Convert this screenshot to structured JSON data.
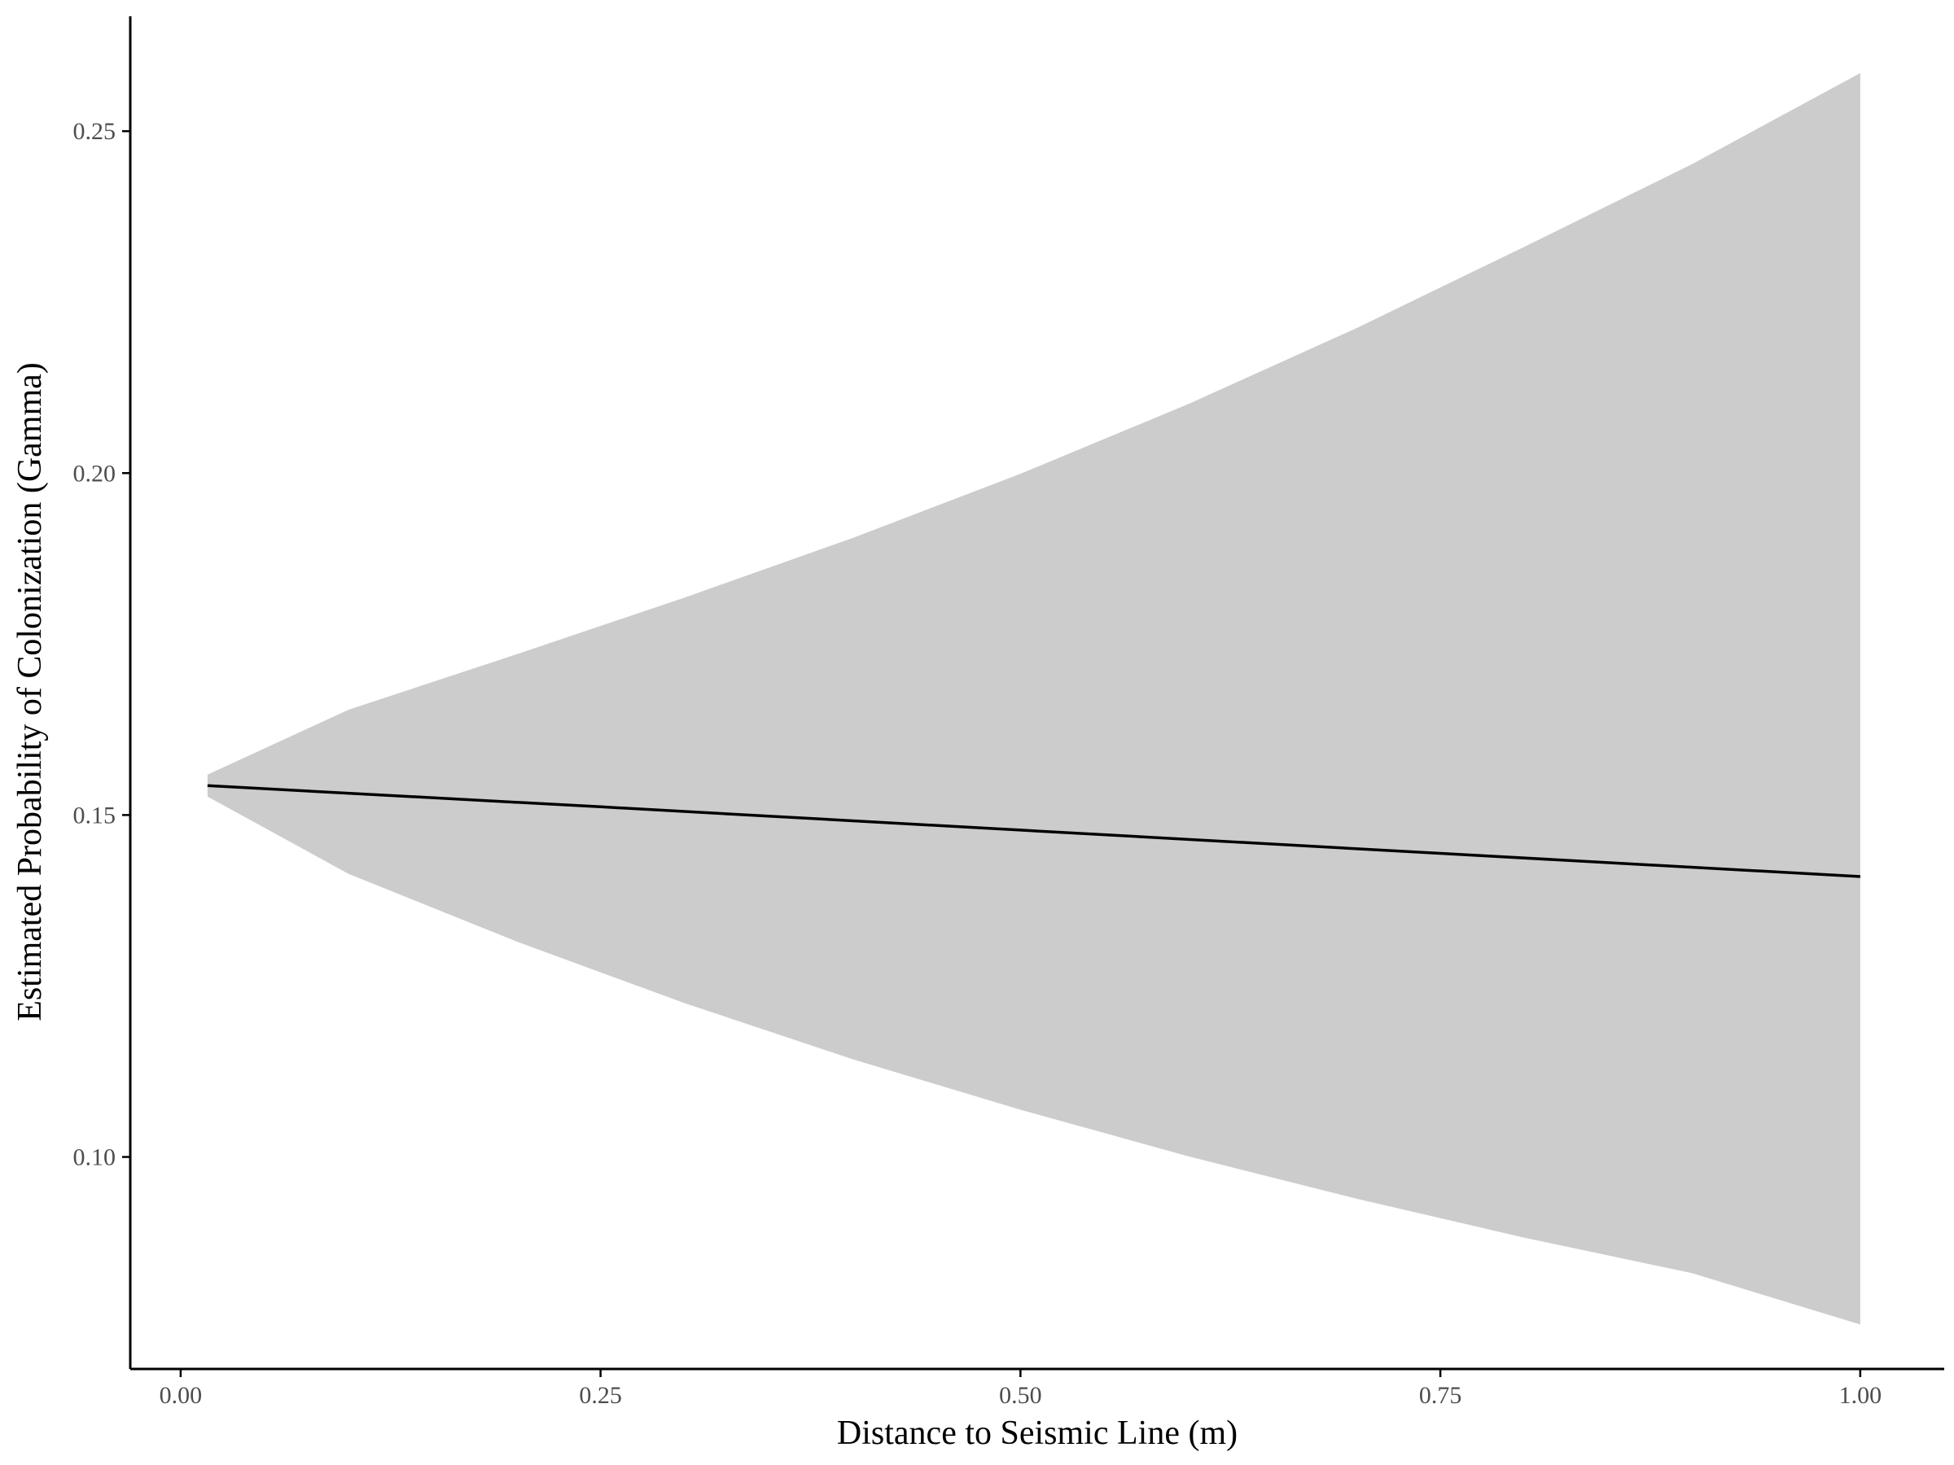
{
  "chart_data": {
    "type": "area",
    "title": "",
    "xlabel": "Distance to Seismic Line (m)",
    "ylabel": "Estimated Probability of Colonization (Gamma)",
    "xlim": [
      -0.03,
      1.05
    ],
    "ylim": [
      0.069,
      0.2668
    ],
    "grid": false,
    "legend": "none",
    "x_ticks": [
      0.0,
      0.25,
      0.5,
      0.75,
      1.0
    ],
    "x_tick_labels": [
      "0.00",
      "0.25",
      "0.50",
      "0.75",
      "1.00"
    ],
    "y_ticks": [
      0.1,
      0.15,
      0.2,
      0.25
    ],
    "y_tick_labels": [
      "0.10",
      "0.15",
      "0.20",
      "0.25"
    ],
    "series": [
      {
        "type": "line",
        "x": [
          0.016,
          0.25,
          0.5,
          0.75,
          1.0
        ],
        "values": [
          0.1543,
          0.1512,
          0.1478,
          0.1444,
          0.141
        ]
      },
      {
        "type": "ribbon",
        "x": [
          0.016,
          0.1,
          0.2,
          0.3,
          0.4,
          0.5,
          0.6,
          0.7,
          0.8,
          0.9,
          1.0
        ],
        "lower": [
          0.1527,
          0.1414,
          0.1315,
          0.1225,
          0.1143,
          0.1069,
          0.1001,
          0.0939,
          0.0882,
          0.083,
          0.0755
        ],
        "upper": [
          0.1559,
          0.1654,
          0.1735,
          0.1818,
          0.1905,
          0.1999,
          0.2101,
          0.2212,
          0.2331,
          0.2452,
          0.2585
        ]
      }
    ],
    "colors": {
      "line": "#000000",
      "ribbon": "#cccccc",
      "axis": "#000000",
      "tick_label": "#4d4d4d"
    }
  }
}
